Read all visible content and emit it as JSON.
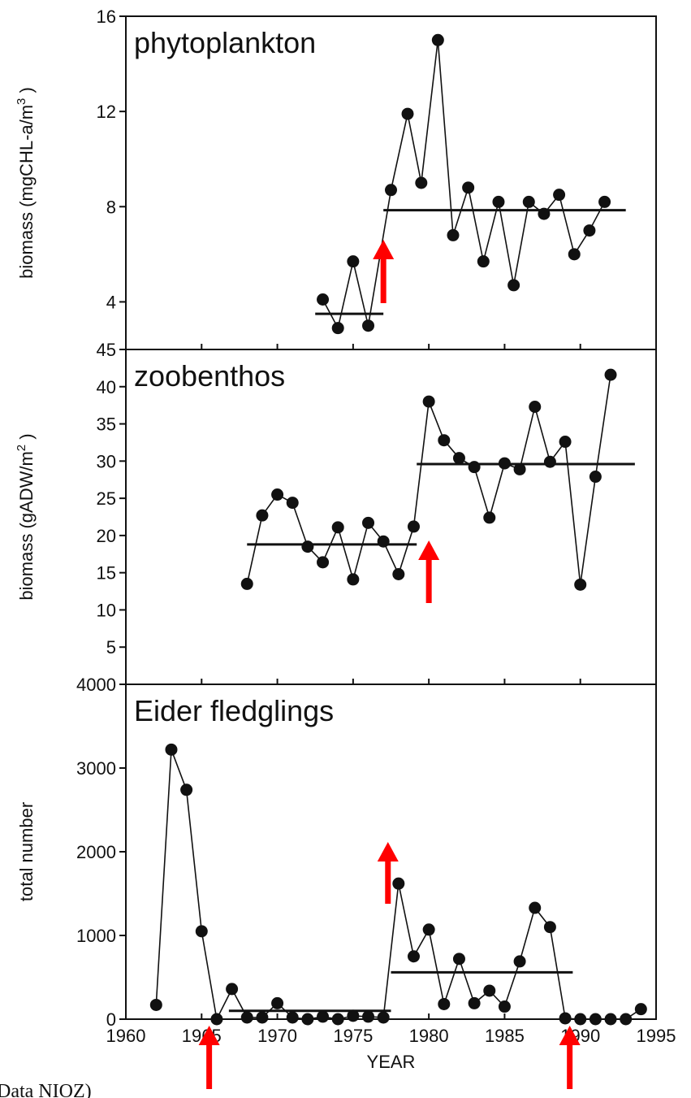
{
  "chart_data": [
    {
      "type": "line",
      "title": "phytoplankton",
      "ylabel_main": "biomass (mgCHL-a/m",
      "ylabel_sup": "3",
      "ylabel_end": ")",
      "ylim": [
        2,
        16
      ],
      "yticks": [
        "4",
        "8",
        "12",
        "16"
      ],
      "ytick_values": [
        4,
        8,
        12,
        16
      ],
      "series": [
        {
          "x": [
            1973,
            1974,
            1975,
            1976,
            1977.5,
            1978.6,
            1979.5,
            1980.6,
            1981.6,
            1982.6,
            1983.6,
            1984.6,
            1985.6,
            1986.6,
            1987.6,
            1988.6,
            1989.6,
            1990.6,
            1991.6
          ],
          "values": [
            4.1,
            2.9,
            5.7,
            3.0,
            8.7,
            11.9,
            9.0,
            15.0,
            6.8,
            8.8,
            5.7,
            8.2,
            4.7,
            8.2,
            7.7,
            8.5,
            6.0,
            7.0,
            8.2
          ]
        }
      ],
      "means": [
        {
          "x_start": 1972.5,
          "x_end": 1977,
          "value": 3.5
        },
        {
          "x_start": 1977,
          "x_end": 1993,
          "value": 7.85
        }
      ]
    },
    {
      "type": "line",
      "title": "zoobenthos",
      "ylabel_main": "biomass (gADW/m",
      "ylabel_sup": "2",
      "ylabel_end": ")",
      "ylim": [
        0,
        45
      ],
      "yticks": [
        "5",
        "10",
        "15",
        "20",
        "25",
        "30",
        "35",
        "40",
        "45"
      ],
      "ytick_values": [
        5,
        10,
        15,
        20,
        25,
        30,
        35,
        40,
        45
      ],
      "series": [
        {
          "x": [
            1968,
            1969,
            1970,
            1971,
            1972,
            1973,
            1974,
            1975,
            1976,
            1977,
            1978,
            1979,
            1980,
            1981,
            1982,
            1983,
            1984,
            1985,
            1986,
            1987,
            1988,
            1989,
            1990,
            1991,
            1992
          ],
          "values": [
            13.5,
            22.7,
            25.5,
            24.4,
            18.5,
            16.4,
            21.1,
            14.1,
            21.7,
            19.2,
            14.8,
            21.2,
            38.0,
            32.8,
            30.4,
            29.2,
            22.4,
            29.7,
            28.9,
            37.3,
            29.9,
            32.6,
            13.4,
            27.9,
            41.6
          ]
        }
      ],
      "means": [
        {
          "x_start": 1968,
          "x_end": 1979.2,
          "value": 18.8
        },
        {
          "x_start": 1979.2,
          "x_end": 1993.6,
          "value": 29.6
        }
      ]
    },
    {
      "type": "line",
      "title": "Eider fledglings",
      "ylabel_main": "total number",
      "xlabel": "YEAR",
      "ylim": [
        0,
        4000
      ],
      "xlim": [
        1960,
        1995
      ],
      "yticks": [
        "0",
        "1000",
        "2000",
        "3000",
        "4000"
      ],
      "ytick_values": [
        0,
        1000,
        2000,
        3000,
        4000
      ],
      "xticks": [
        "1960",
        "1965",
        "1970",
        "1975",
        "1980",
        "1985",
        "1990",
        "1995"
      ],
      "xtick_values": [
        1960,
        1965,
        1970,
        1975,
        1980,
        1985,
        1990,
        1995
      ],
      "series": [
        {
          "x": [
            1962,
            1963,
            1964,
            1965,
            1966,
            1967,
            1968,
            1969,
            1970,
            1971,
            1972,
            1973,
            1974,
            1975,
            1976,
            1977,
            1978,
            1979,
            1980,
            1981,
            1982,
            1983,
            1984,
            1985,
            1986,
            1987,
            1988,
            1989,
            1990,
            1991,
            1992,
            1993,
            1994
          ],
          "values": [
            170,
            3220,
            2740,
            1050,
            0,
            360,
            20,
            20,
            190,
            20,
            0,
            30,
            0,
            40,
            30,
            20,
            1620,
            750,
            1070,
            180,
            720,
            190,
            340,
            150,
            690,
            1330,
            1100,
            10,
            0,
            0,
            0,
            0,
            120
          ]
        }
      ],
      "means": [
        {
          "x_start": 1966.8,
          "x_end": 1977.5,
          "value": 100
        },
        {
          "x_start": 1977.5,
          "x_end": 1989.5,
          "value": 560
        }
      ]
    }
  ],
  "arrows": {
    "color": "#ff0000",
    "phytoplankton_arrow_years": [
      1977
    ],
    "zoobenthos_arrow_years": [
      1980
    ],
    "eider_arrow_years": [
      1965.5,
      1977.3,
      1989.3
    ]
  },
  "credit": "Data NIOZ)"
}
